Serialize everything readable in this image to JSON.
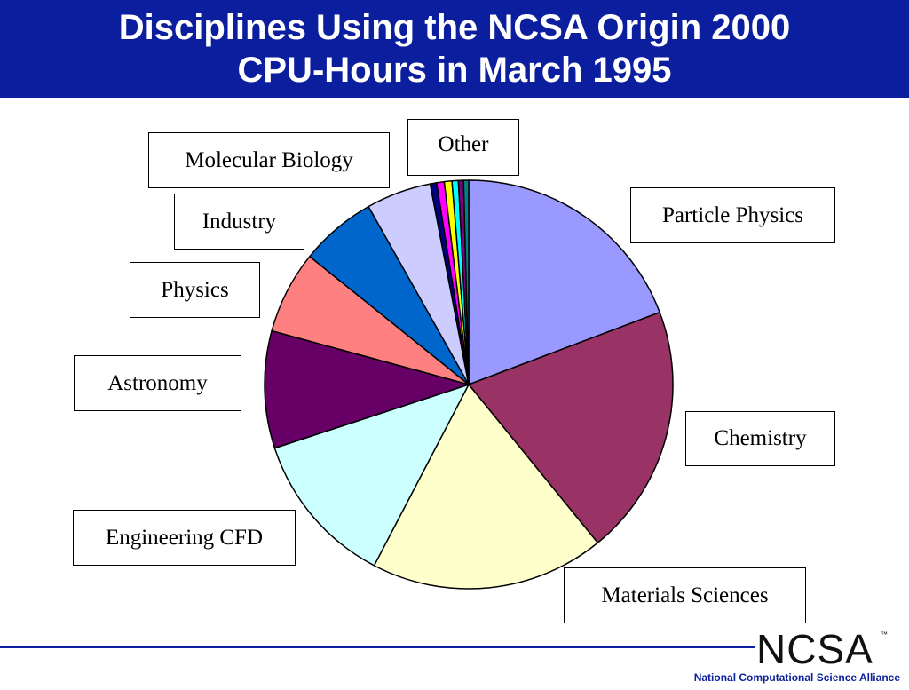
{
  "header": {
    "title_line1": "Disciplines Using the NCSA Origin 2000",
    "title_line2": "CPU-Hours in March 1995"
  },
  "colors": {
    "title_bar": "#0b1f9e",
    "footer_rule": "#0b1f9e"
  },
  "chart_data": {
    "type": "pie",
    "title": "Disciplines Using the NCSA Origin 2000 CPU-Hours in March 1995",
    "slices": [
      {
        "label": "Particle Physics",
        "value": 19.1,
        "color": "#9999ff"
      },
      {
        "label": "Chemistry",
        "value": 19.7,
        "color": "#993366"
      },
      {
        "label": "Materials Sciences",
        "value": 18.4,
        "color": "#ffffcc"
      },
      {
        "label": "Engineering CFD",
        "value": 12.2,
        "color": "#ccffff"
      },
      {
        "label": "Astronomy",
        "value": 9.2,
        "color": "#660066"
      },
      {
        "label": "Physics",
        "value": 6.5,
        "color": "#ff8080"
      },
      {
        "label": "Industry",
        "value": 6.0,
        "color": "#0066cc"
      },
      {
        "label": "Molecular Biology",
        "value": 5.1,
        "color": "#ccccff"
      },
      {
        "label": "",
        "value": 0.5,
        "color": "#000080"
      },
      {
        "label": "",
        "value": 0.6,
        "color": "#ff00ff"
      },
      {
        "label": "",
        "value": 0.6,
        "color": "#ffff00"
      },
      {
        "label": "",
        "value": 0.5,
        "color": "#00ffff"
      },
      {
        "label": "",
        "value": 0.4,
        "color": "#800080"
      },
      {
        "label": "",
        "value": 0.4,
        "color": "#008080"
      }
    ],
    "other_label": "Other"
  },
  "footer": {
    "logo_text": "NCSA",
    "logo_tm": "™",
    "alliance": "National Computational Science Alliance"
  }
}
